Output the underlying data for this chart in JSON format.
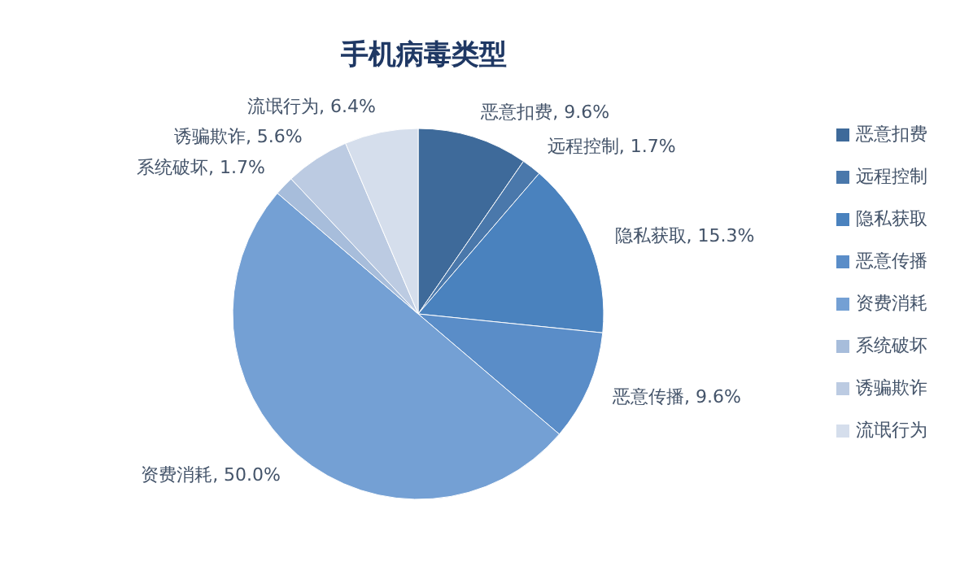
{
  "chart_data": {
    "type": "pie",
    "title": "手机病毒类型",
    "categories": [
      "恶意扣费",
      "远程控制",
      "隐私获取",
      "恶意传播",
      "资费消耗",
      "系统破坏",
      "诱骗欺诈",
      "流氓行为"
    ],
    "values": [
      9.6,
      1.7,
      15.3,
      9.6,
      50.0,
      1.7,
      5.6,
      6.4
    ],
    "value_labels": [
      "恶意扣费, 9.6%",
      "远程控制, 1.7%",
      "隐私获取, 15.3%",
      "恶意传播, 9.6%",
      "资费消耗, 50.0%",
      "系统破坏, 1.7%",
      "诱骗欺诈, 5.6%",
      "流氓行为, 6.4%"
    ],
    "colors": [
      "#3e6a9a",
      "#4a78ab",
      "#4a82be",
      "#5a8dc8",
      "#74a0d4",
      "#a7bddb",
      "#bccbe2",
      "#d5deec"
    ],
    "legend": "right"
  }
}
